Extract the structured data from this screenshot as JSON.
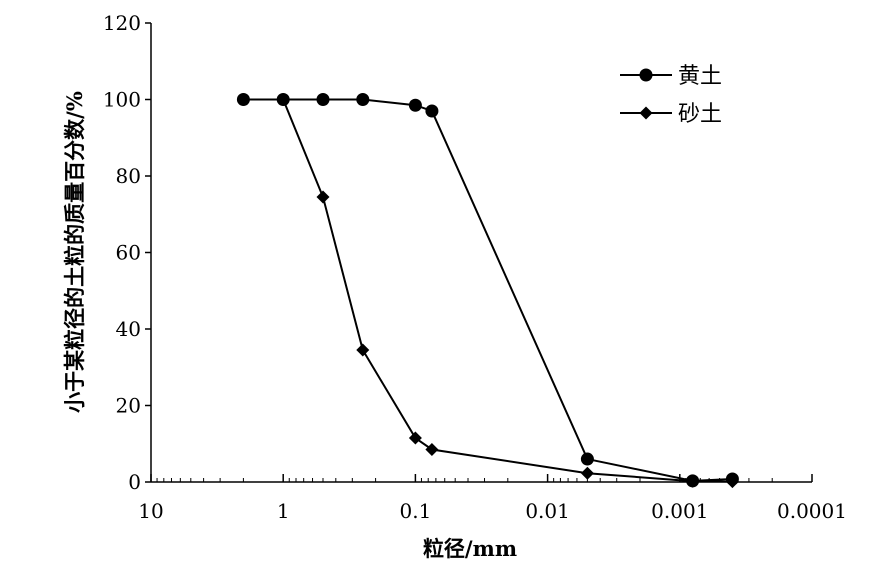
{
  "chart_data": {
    "type": "line",
    "title": "",
    "xlabel": "粒径/mm",
    "ylabel": "小于某粒径的土粒的质量百分数/%",
    "x_scale": "log",
    "x_reversed": true,
    "xlim": [
      10,
      0.0001
    ],
    "ylim": [
      0,
      120
    ],
    "x_ticks": [
      10,
      1,
      0.1,
      0.01,
      0.001,
      0.0001
    ],
    "x_tick_labels": [
      "10",
      "1",
      "0.1",
      "0.01",
      "0.001",
      "0.0001"
    ],
    "y_ticks": [
      0,
      20,
      40,
      60,
      80,
      100,
      120
    ],
    "y_tick_labels": [
      "0",
      "20",
      "40",
      "60",
      "80",
      "100",
      "120"
    ],
    "grid": false,
    "legend_position": "top-right",
    "series": [
      {
        "name": "黄土",
        "marker": "circle",
        "x": [
          2,
          1,
          0.5,
          0.25,
          0.1,
          0.075,
          0.005,
          0.0008,
          0.0004
        ],
        "y": [
          100,
          100,
          100,
          100,
          98.5,
          97,
          6,
          0.3,
          0.8
        ]
      },
      {
        "name": "砂土",
        "marker": "diamond",
        "x": [
          1,
          0.5,
          0.25,
          0.1,
          0.075,
          0.005,
          0.0008,
          0.0004
        ],
        "y": [
          100,
          74.5,
          34.5,
          11.5,
          8.5,
          2.3,
          0.2,
          0.1
        ]
      }
    ]
  }
}
